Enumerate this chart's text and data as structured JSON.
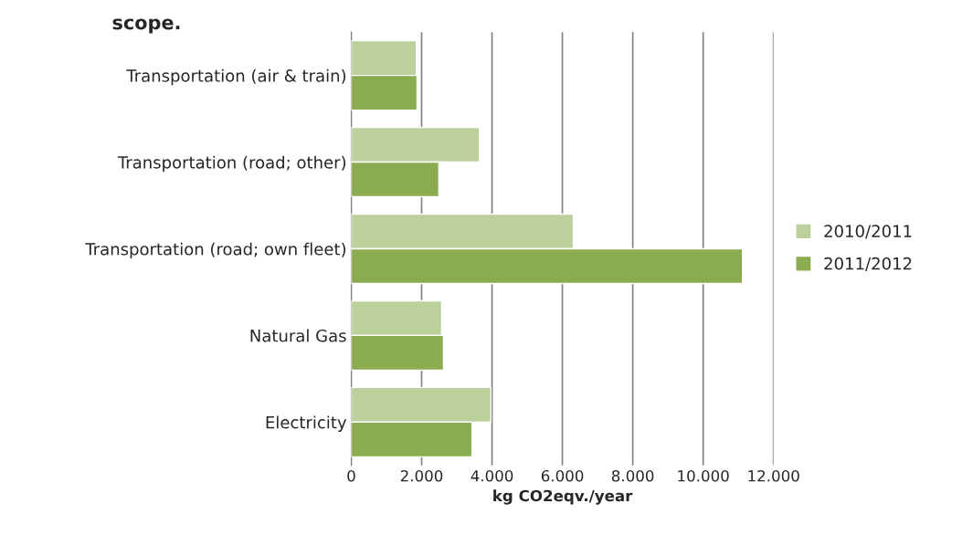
{
  "chart_data": {
    "type": "bar",
    "orientation": "horizontal",
    "title": "scope.",
    "xlabel": "kg CO2eqv./year",
    "categories": [
      "Transportation (air & train)",
      "Transportation (road; other)",
      "Transportation (road; own fleet)",
      "Natural Gas",
      "Electricity"
    ],
    "series": [
      {
        "name": "2010/2011",
        "color": "#bcd09b",
        "values": [
          1850,
          3640,
          6310,
          2570,
          3970
        ]
      },
      {
        "name": "2011/2012",
        "color": "#8aab4f",
        "values": [
          1870,
          2490,
          11120,
          2620,
          3430
        ]
      }
    ],
    "xlim": [
      0,
      12000
    ],
    "xticks": [
      {
        "value": 0,
        "label": "0"
      },
      {
        "value": 2000,
        "label": "2.000"
      },
      {
        "value": 4000,
        "label": "4.000"
      },
      {
        "value": 6000,
        "label": "6.000"
      },
      {
        "value": 8000,
        "label": "8.000"
      },
      {
        "value": 10000,
        "label": "10.000"
      },
      {
        "value": 12000,
        "label": "12.000"
      }
    ],
    "grid": "x",
    "legend": "right"
  }
}
